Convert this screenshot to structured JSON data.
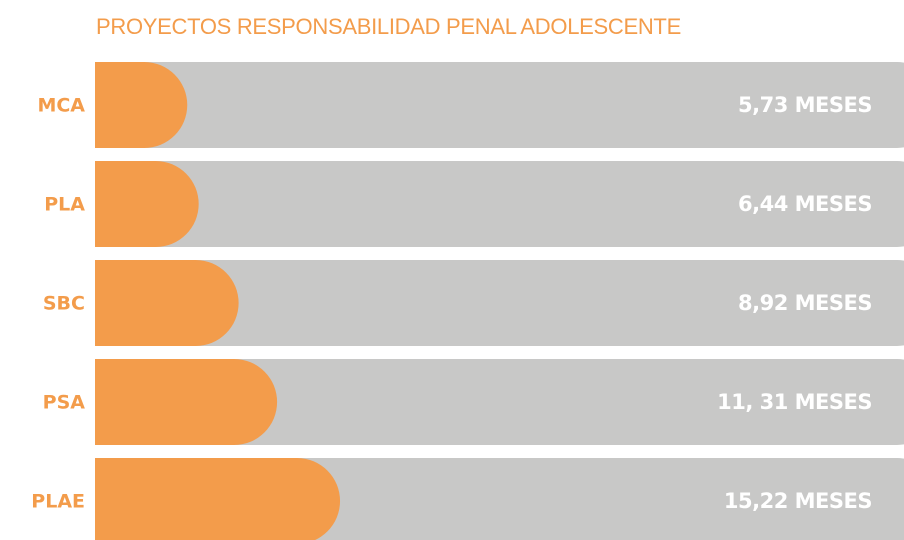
{
  "chart_data": {
    "type": "bar",
    "title": "PROYECTOS  RESPONSABILIDAD PENAL ADOLESCENTE",
    "categories": [
      "MCA",
      "PLA",
      "SBC",
      "PSA",
      "PLAE"
    ],
    "values": [
      5.73,
      6.44,
      8.92,
      11.31,
      15.22
    ],
    "value_labels": [
      "5,73 MESES",
      "6,44 MESES",
      "8,92 MESES",
      "11, 31 MESES",
      "15,22 MESES"
    ],
    "color": "#f39c4b",
    "track_color": "#c8c8c7"
  }
}
